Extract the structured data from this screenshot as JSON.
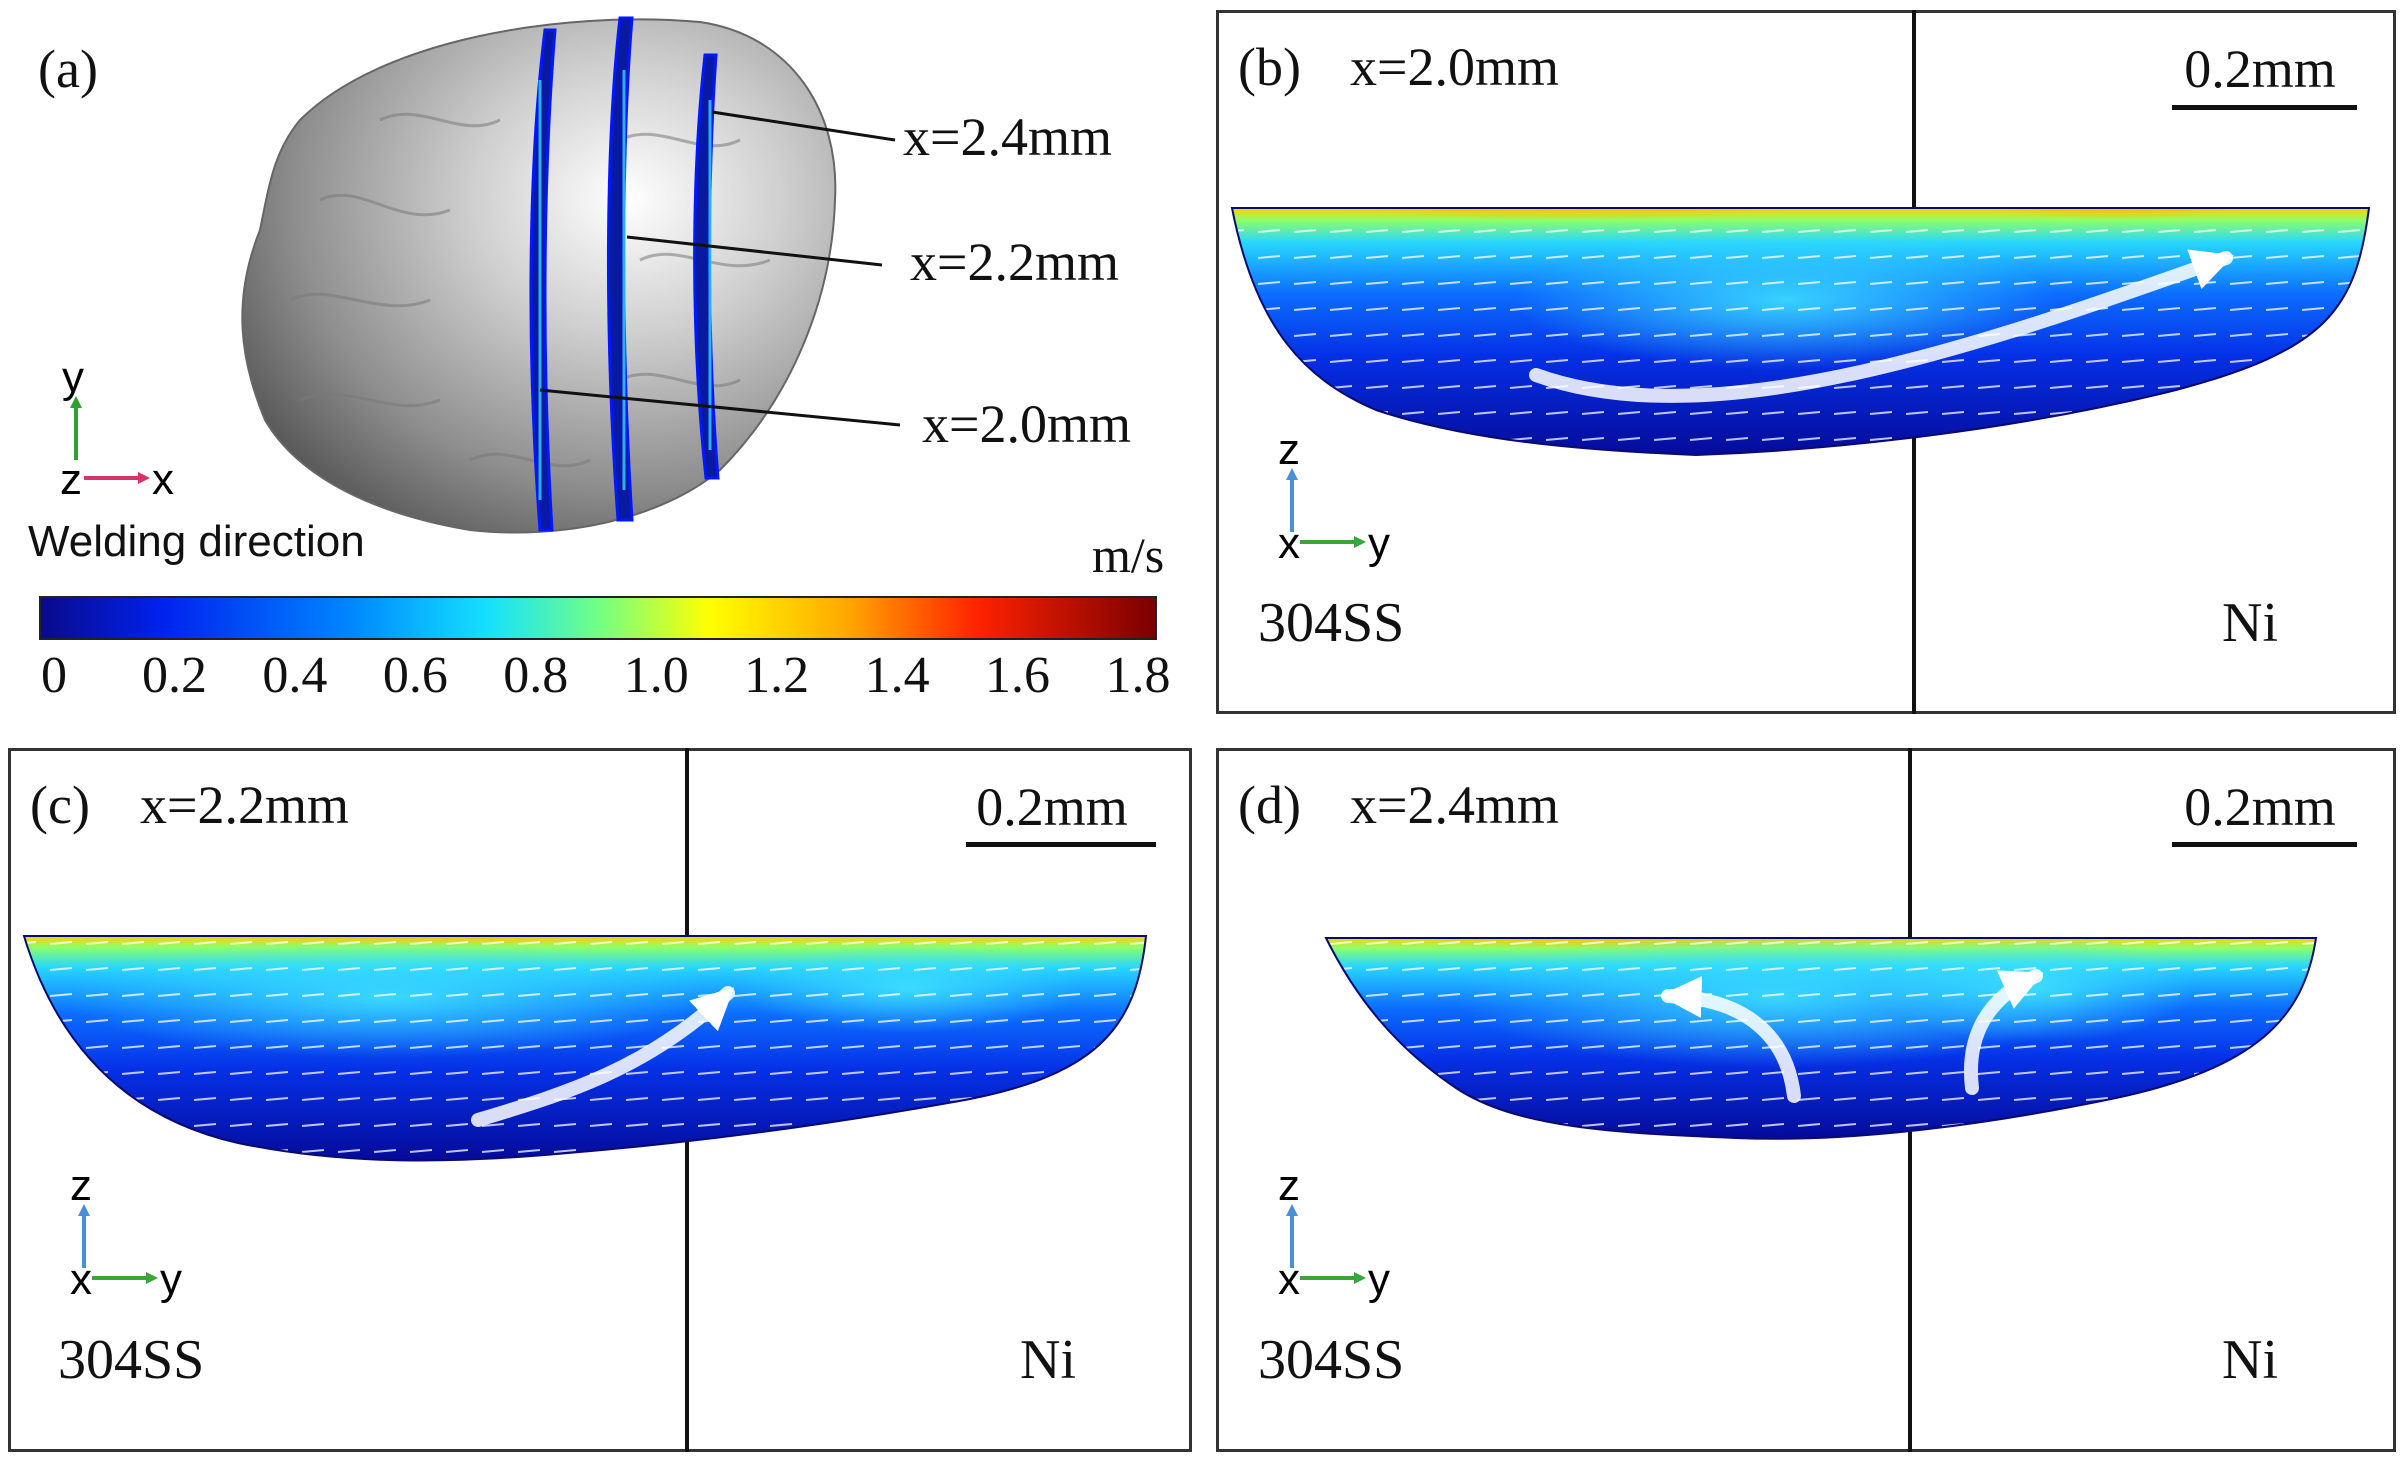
{
  "panel_a": {
    "label": "(a)",
    "slice_labels": [
      "x=2.4mm",
      "x=2.2mm",
      "x=2.0mm"
    ],
    "triad": {
      "up": "y",
      "out": "z",
      "right": "x"
    },
    "welding_direction": "Welding direction",
    "colorbar": {
      "unit": "m/s",
      "ticks": [
        "0",
        "0.2",
        "0.4",
        "0.6",
        "0.8",
        "1.0",
        "1.2",
        "1.4",
        "1.6",
        "1.8"
      ],
      "min": 0,
      "max": 1.8,
      "colors": [
        "#0a0a8a",
        "#0033ff",
        "#0099ff",
        "#15e0ff",
        "#7dff7a",
        "#ffff00",
        "#ff9900",
        "#ff2200",
        "#7a0000"
      ]
    }
  },
  "panels": [
    {
      "id": "b",
      "label": "(b)",
      "position": "x=2.0mm",
      "scale": "0.2mm",
      "left_material": "304SS",
      "right_material": "Ni",
      "triad": {
        "up": "z",
        "out": "x",
        "right": "y"
      }
    },
    {
      "id": "c",
      "label": "(c)",
      "position": "x=2.2mm",
      "scale": "0.2mm",
      "left_material": "304SS",
      "right_material": "Ni",
      "triad": {
        "up": "z",
        "out": "x",
        "right": "y"
      }
    },
    {
      "id": "d",
      "label": "(d)",
      "position": "x=2.4mm",
      "scale": "0.2mm",
      "left_material": "304SS",
      "right_material": "Ni",
      "triad": {
        "up": "z",
        "out": "x",
        "right": "y"
      }
    }
  ]
}
